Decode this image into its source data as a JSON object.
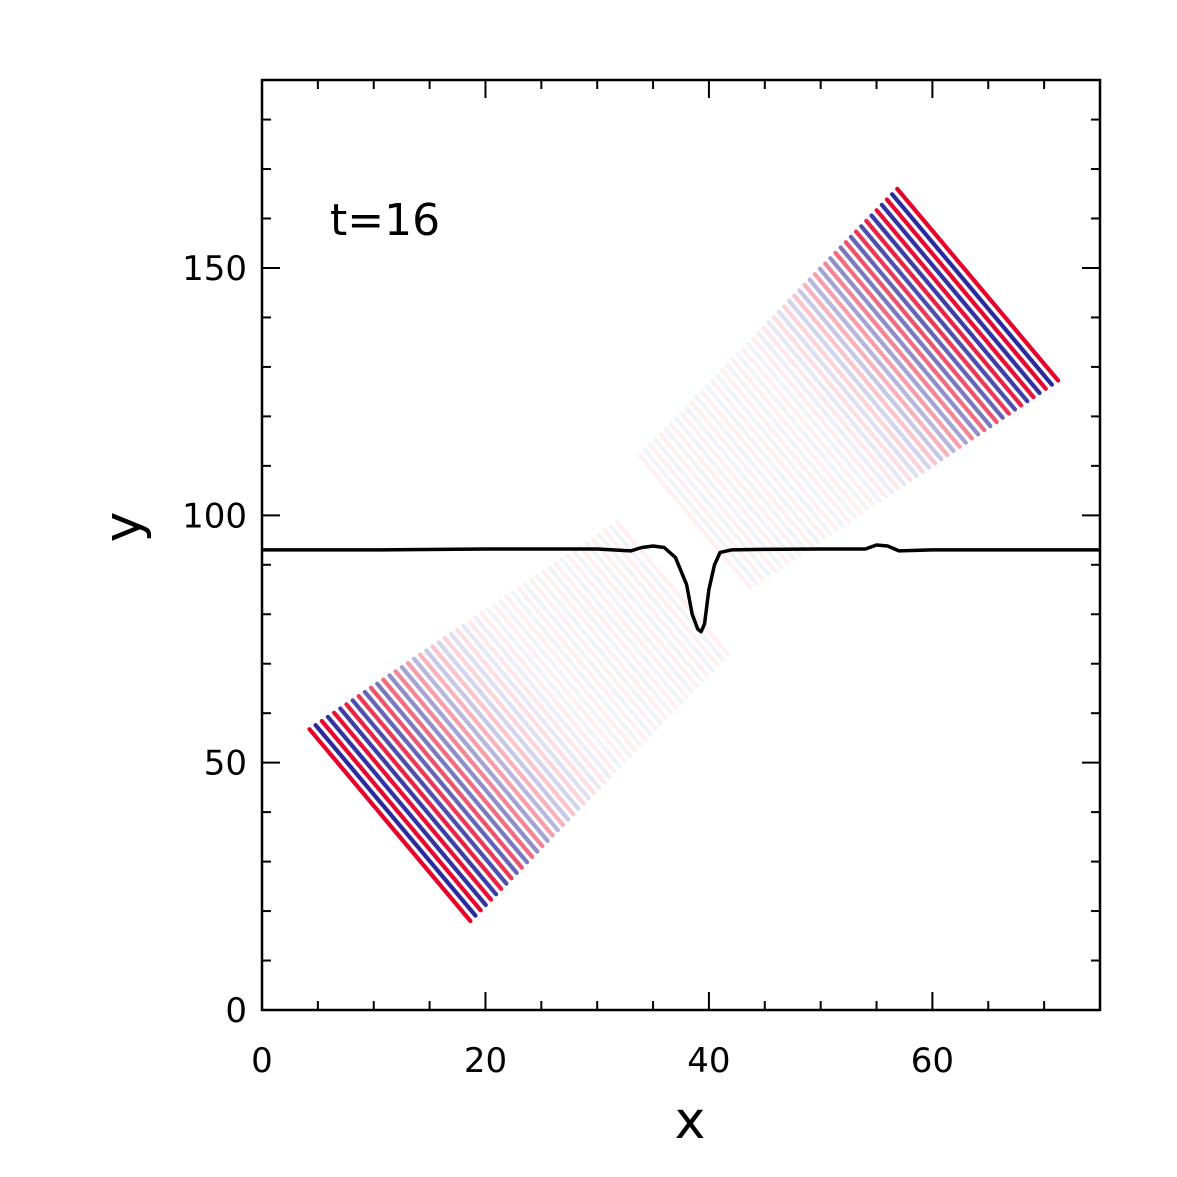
{
  "chart_data": {
    "type": "line",
    "title": "",
    "xlabel": "x",
    "ylabel": "y",
    "xlim": [
      0,
      75
    ],
    "ylim": [
      0,
      188
    ],
    "x_ticks": [
      0,
      20,
      40,
      60
    ],
    "y_ticks": [
      0,
      50,
      100,
      150
    ],
    "x_minor_step": 5,
    "y_minor_step": 10,
    "grid": false,
    "annotation": "t=16",
    "series": [
      {
        "type": "line",
        "color": "#000000",
        "x": [
          0,
          10,
          20,
          30,
          33,
          34,
          35,
          36,
          37,
          38,
          38.5,
          39,
          39.3,
          39.6,
          40,
          40.5,
          41,
          42,
          44,
          50,
          54,
          55,
          56,
          57,
          60,
          75
        ],
        "y": [
          93,
          93,
          93.2,
          93.2,
          92.8,
          93.5,
          93.8,
          93.5,
          91.5,
          86,
          80,
          77,
          76.5,
          78,
          85,
          90,
          92.5,
          93,
          93.1,
          93.2,
          93.2,
          94,
          93.8,
          92.8,
          93,
          93
        ]
      },
      {
        "type": "wave-packet",
        "colors": [
          "#e8002a",
          "#2a2aa0"
        ],
        "center": [
          16,
          46
        ],
        "direction_deg": 40,
        "length": 30,
        "width": 14,
        "wavelength": 1.3
      },
      {
        "type": "wave-packet",
        "colors": [
          "#e8002a",
          "#2a2aa0"
        ],
        "center": [
          59.5,
          138
        ],
        "direction_deg": 220,
        "length": 30,
        "width": 14,
        "wavelength": 1.3
      }
    ]
  }
}
